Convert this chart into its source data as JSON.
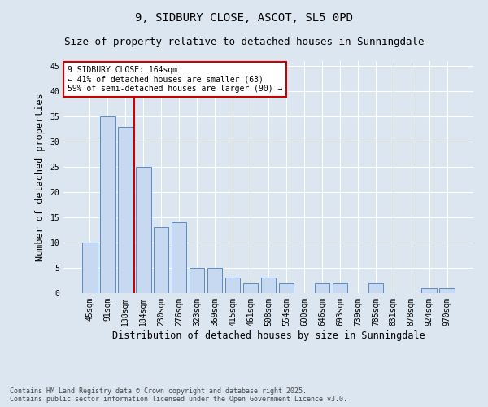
{
  "title1": "9, SIDBURY CLOSE, ASCOT, SL5 0PD",
  "title2": "Size of property relative to detached houses in Sunningdale",
  "xlabel": "Distribution of detached houses by size in Sunningdale",
  "ylabel": "Number of detached properties",
  "categories": [
    "45sqm",
    "91sqm",
    "138sqm",
    "184sqm",
    "230sqm",
    "276sqm",
    "323sqm",
    "369sqm",
    "415sqm",
    "461sqm",
    "508sqm",
    "554sqm",
    "600sqm",
    "646sqm",
    "693sqm",
    "739sqm",
    "785sqm",
    "831sqm",
    "878sqm",
    "924sqm",
    "970sqm"
  ],
  "values": [
    10,
    35,
    33,
    25,
    13,
    14,
    5,
    5,
    3,
    2,
    3,
    2,
    0,
    2,
    2,
    0,
    2,
    0,
    0,
    1,
    1
  ],
  "bar_color": "#c6d9f0",
  "bar_edge_color": "#5a8ac6",
  "vline_x": 2.5,
  "vline_color": "#cc0000",
  "annotation_text": "9 SIDBURY CLOSE: 164sqm\n← 41% of detached houses are smaller (63)\n59% of semi-detached houses are larger (90) →",
  "annotation_box_color": "#ffffff",
  "annotation_edge_color": "#cc0000",
  "ylim": [
    0,
    46
  ],
  "yticks": [
    0,
    5,
    10,
    15,
    20,
    25,
    30,
    35,
    40,
    45
  ],
  "bg_color": "#dce6f1",
  "plot_bg_color": "#dce6f1",
  "footer": "Contains HM Land Registry data © Crown copyright and database right 2025.\nContains public sector information licensed under the Open Government Licence v3.0.",
  "title_fontsize": 10,
  "subtitle_fontsize": 9,
  "tick_fontsize": 7,
  "label_fontsize": 8.5,
  "annotation_fontsize": 7,
  "footer_fontsize": 6
}
